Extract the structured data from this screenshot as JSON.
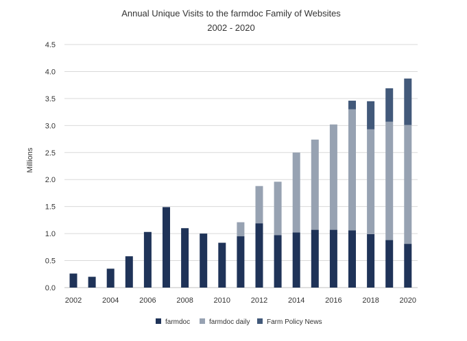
{
  "chart_data": {
    "type": "bar",
    "stacked": true,
    "title": "Annual Unique Visits to the farmdoc Family of Websites",
    "subtitle": "2002 - 2020",
    "xlabel": "",
    "ylabel": "Millions",
    "ylim": [
      0,
      4.5
    ],
    "yticks": [
      "0.0",
      "0.5",
      "1.0",
      "1.5",
      "2.0",
      "2.5",
      "3.0",
      "3.5",
      "4.0",
      "4.5"
    ],
    "ytick_values": [
      0,
      0.5,
      1.0,
      1.5,
      2.0,
      2.5,
      3.0,
      3.5,
      4.0,
      4.5
    ],
    "grid": true,
    "legend_position": "bottom",
    "categories": [
      "2002",
      "2003",
      "2004",
      "2005",
      "2006",
      "2007",
      "2008",
      "2009",
      "2010",
      "2011",
      "2012",
      "2013",
      "2014",
      "2015",
      "2016",
      "2017",
      "2018",
      "2019",
      "2020"
    ],
    "xtick_labels": [
      "2002",
      "2004",
      "2006",
      "2008",
      "2010",
      "2012",
      "2014",
      "2016",
      "2018",
      "2020"
    ],
    "series": [
      {
        "name": "farmdoc",
        "color": "#1f3358",
        "values": [
          0.26,
          0.2,
          0.35,
          0.58,
          1.03,
          1.49,
          1.1,
          1.0,
          0.83,
          0.95,
          1.19,
          0.97,
          1.02,
          1.07,
          1.07,
          1.06,
          0.99,
          0.88,
          0.81
        ]
      },
      {
        "name": "farmdoc daily",
        "color": "#97a2b2",
        "values": [
          0,
          0,
          0,
          0,
          0,
          0,
          0,
          0,
          0,
          0.26,
          0.69,
          0.99,
          1.48,
          1.67,
          1.95,
          2.24,
          1.94,
          2.19,
          2.2
        ]
      },
      {
        "name": "Farm Policy News",
        "color": "#42597a",
        "values": [
          0,
          0,
          0,
          0,
          0,
          0,
          0,
          0,
          0,
          0,
          0,
          0,
          0,
          0,
          0,
          0.16,
          0.52,
          0.62,
          0.86
        ]
      }
    ]
  }
}
